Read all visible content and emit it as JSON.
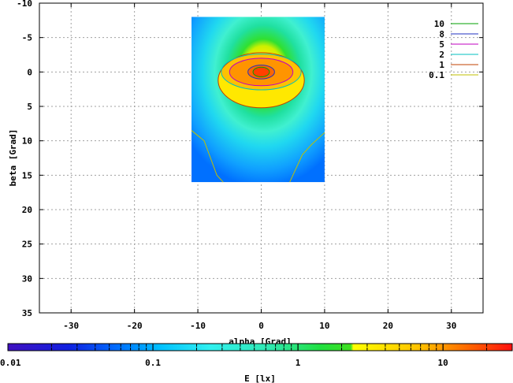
{
  "chart_data": {
    "type": "heatmap",
    "title": "",
    "xlabel": "alpha [Grad]",
    "ylabel": "beta [Grad]",
    "xlim": [
      -35,
      35
    ],
    "ylim": [
      -10,
      35
    ],
    "y_inverted": true,
    "grid": true,
    "x_ticks": [
      -30,
      -20,
      -10,
      0,
      10,
      20,
      30
    ],
    "y_ticks": [
      -10,
      -5,
      0,
      5,
      10,
      15,
      20,
      25,
      30,
      35
    ],
    "data_extent": {
      "x": [
        -11,
        10
      ],
      "y": [
        -8,
        16
      ]
    },
    "peak": {
      "x": 0,
      "y": 0,
      "value": 12
    },
    "legend_position": "top-right",
    "contours": [
      {
        "label": "10",
        "level": 10,
        "color": "#00a000",
        "rx": 1.3,
        "ry": 0.7
      },
      {
        "label": "8",
        "level": 8,
        "color": "#2030c0",
        "rx": 2.1,
        "ry": 1.0
      },
      {
        "label": "5",
        "level": 5,
        "color": "#c000c0",
        "rx": 5.0,
        "ry": 2.0
      },
      {
        "label": "2",
        "level": 2,
        "color": "#00c0c0",
        "rx": 6.3,
        "ry": 2.6
      },
      {
        "label": "1",
        "level": 1,
        "color": "#c04000",
        "rx": 6.8,
        "ry": 4.0
      },
      {
        "label": "0.1",
        "level": 0.1,
        "color": "#c0c000"
      }
    ],
    "colorbar": {
      "label": "E [lx]",
      "scale": "log",
      "range": [
        0.01,
        30
      ],
      "tick_labels": [
        "0.01",
        "0.1",
        "1",
        "10"
      ],
      "tick_values": [
        0.01,
        0.1,
        1,
        10
      ]
    }
  }
}
